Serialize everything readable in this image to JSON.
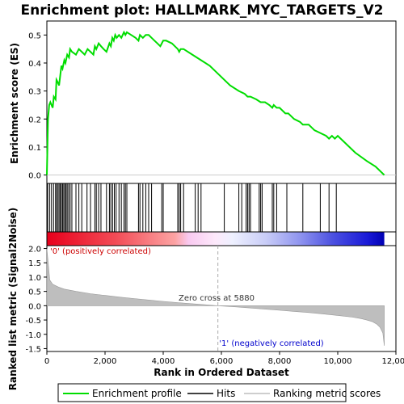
{
  "chart_data": {
    "type": "line",
    "title": "Enrichment plot: HALLMARK_MYC_TARGETS_V2",
    "xlabel": "Rank in Ordered Dataset",
    "xlim": [
      0,
      12000
    ],
    "x_ticks": [
      0,
      2000,
      4000,
      6000,
      8000,
      10000,
      12000
    ],
    "x_tick_labels": [
      "0",
      "2,000",
      "4,000",
      "6,000",
      "8,000",
      "10,000",
      "12,000"
    ],
    "n_genes": 11600,
    "panels": {
      "es": {
        "ylabel": "Enrichment score (ES)",
        "ylim": [
          -0.03,
          0.55
        ],
        "y_ticks": [
          0.0,
          0.1,
          0.2,
          0.3,
          0.4,
          0.5
        ],
        "y_tick_labels": [
          "0.0",
          "0.1",
          "0.2",
          "0.3",
          "0.4",
          "0.5"
        ]
      },
      "metric": {
        "ylabel": "Ranked list metric (Signal2Noise)",
        "ylim": [
          -1.6,
          2.1
        ],
        "y_ticks": [
          -1.5,
          -1.0,
          -0.5,
          0.0,
          0.5,
          1.0,
          1.5,
          2.0
        ],
        "y_tick_labels": [
          "-1.5",
          "-1.0",
          "-0.5",
          "0.0",
          "0.5",
          "1.0",
          "1.5",
          "2.0"
        ]
      }
    },
    "series": [
      {
        "name": "Enrichment profile",
        "color": "#00dd00",
        "x": [
          0,
          40,
          80,
          120,
          200,
          240,
          300,
          330,
          380,
          420,
          500,
          540,
          600,
          640,
          700,
          760,
          800,
          860,
          1000,
          1100,
          1200,
          1300,
          1400,
          1500,
          1600,
          1650,
          1700,
          1780,
          1860,
          1950,
          2050,
          2150,
          2200,
          2250,
          2300,
          2350,
          2400,
          2480,
          2560,
          2650,
          2700,
          2750,
          2900,
          3050,
          3150,
          3200,
          3300,
          3400,
          3500,
          3600,
          3700,
          3800,
          3900,
          4000,
          4100,
          4300,
          4500,
          4550,
          4600,
          4700,
          5000,
          5300,
          5600,
          6000,
          6300,
          6600,
          6800,
          6900,
          7000,
          7200,
          7350,
          7500,
          7650,
          7750,
          7800,
          7900,
          8000,
          8200,
          8300,
          8500,
          8700,
          8800,
          9000,
          9200,
          9400,
          9600,
          9700,
          9800,
          9900,
          10000,
          10200,
          10600,
          11000,
          11300,
          11600
        ],
        "y": [
          0.0,
          0.2,
          0.25,
          0.26,
          0.24,
          0.28,
          0.27,
          0.34,
          0.33,
          0.32,
          0.39,
          0.38,
          0.41,
          0.4,
          0.43,
          0.42,
          0.45,
          0.44,
          0.43,
          0.45,
          0.44,
          0.43,
          0.45,
          0.44,
          0.43,
          0.46,
          0.45,
          0.47,
          0.46,
          0.45,
          0.44,
          0.47,
          0.46,
          0.49,
          0.48,
          0.5,
          0.49,
          0.5,
          0.49,
          0.51,
          0.5,
          0.51,
          0.5,
          0.49,
          0.48,
          0.5,
          0.49,
          0.5,
          0.5,
          0.49,
          0.48,
          0.47,
          0.46,
          0.48,
          0.48,
          0.47,
          0.45,
          0.44,
          0.45,
          0.45,
          0.43,
          0.41,
          0.39,
          0.35,
          0.32,
          0.3,
          0.29,
          0.28,
          0.28,
          0.27,
          0.26,
          0.26,
          0.25,
          0.24,
          0.25,
          0.24,
          0.24,
          0.22,
          0.22,
          0.2,
          0.19,
          0.18,
          0.18,
          0.16,
          0.15,
          0.14,
          0.13,
          0.14,
          0.13,
          0.14,
          0.12,
          0.08,
          0.05,
          0.03,
          0.0
        ]
      },
      {
        "name": "Hits",
        "color": "#000000",
        "x": [
          30,
          100,
          160,
          230,
          300,
          330,
          380,
          420,
          460,
          500,
          540,
          580,
          620,
          660,
          700,
          750,
          800,
          860,
          1000,
          1100,
          1200,
          1380,
          1500,
          1650,
          1700,
          1780,
          1860,
          2050,
          2150,
          2200,
          2260,
          2320,
          2380,
          2480,
          2560,
          2650,
          2700,
          2750,
          3150,
          3200,
          3300,
          3400,
          3500,
          3600,
          3950,
          4000,
          4500,
          4550,
          4600,
          4700,
          5100,
          5200,
          5300,
          6100,
          6600,
          6700,
          6850,
          6900,
          6950,
          7000,
          7300,
          7350,
          7400,
          7750,
          7800,
          7900,
          8250,
          8800,
          9400,
          9700,
          9950
        ]
      },
      {
        "name": "Ranking metric scores",
        "color": "#bebebe",
        "x": [
          0,
          100,
          200,
          400,
          600,
          1000,
          1500,
          2000,
          2500,
          3000,
          3500,
          4000,
          4500,
          5000,
          5500,
          5880,
          6500,
          7000,
          7500,
          8000,
          8500,
          9000,
          9500,
          10000,
          10500,
          10800,
          11000,
          11200,
          11350,
          11450,
          11550,
          11600
        ],
        "y": [
          2.0,
          0.9,
          0.75,
          0.65,
          0.58,
          0.5,
          0.42,
          0.36,
          0.3,
          0.25,
          0.2,
          0.15,
          0.11,
          0.07,
          0.03,
          0.0,
          -0.04,
          -0.08,
          -0.12,
          -0.16,
          -0.2,
          -0.24,
          -0.29,
          -0.34,
          -0.4,
          -0.45,
          -0.5,
          -0.56,
          -0.65,
          -0.75,
          -0.95,
          -1.4
        ]
      }
    ],
    "annotations": {
      "zero_cross": "Zero cross at 5880",
      "zero_cross_rank": 5880,
      "pos_label": "'0' (positively correlated)",
      "neg_label": "'1' (negatively correlated)"
    },
    "legend": {
      "position": "bottom",
      "items": [
        "Enrichment profile",
        "Hits",
        "Ranking metric scores"
      ]
    },
    "colors": {
      "profile": "#00dd00",
      "hits": "#000000",
      "metric_fill": "#bebebe",
      "pos_label": "#cc0000",
      "neg_label": "#0000cc"
    }
  }
}
